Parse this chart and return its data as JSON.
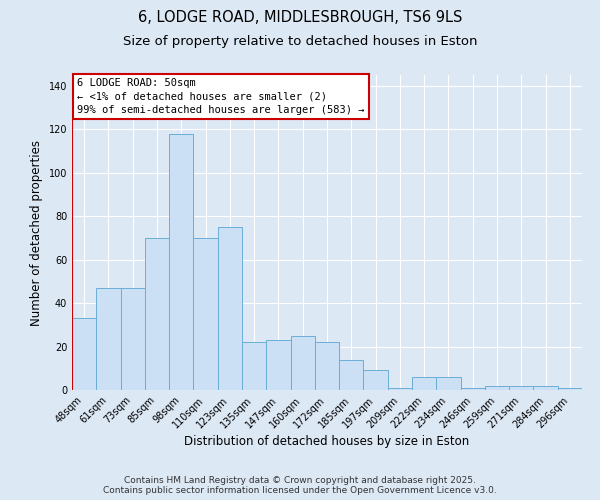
{
  "title_line1": "6, LODGE ROAD, MIDDLESBROUGH, TS6 9LS",
  "title_line2": "Size of property relative to detached houses in Eston",
  "xlabel": "Distribution of detached houses by size in Eston",
  "ylabel": "Number of detached properties",
  "bar_labels": [
    "48sqm",
    "61sqm",
    "73sqm",
    "85sqm",
    "98sqm",
    "110sqm",
    "123sqm",
    "135sqm",
    "147sqm",
    "160sqm",
    "172sqm",
    "185sqm",
    "197sqm",
    "209sqm",
    "222sqm",
    "234sqm",
    "246sqm",
    "259sqm",
    "271sqm",
    "284sqm",
    "296sqm"
  ],
  "bar_values": [
    33,
    47,
    47,
    70,
    118,
    70,
    75,
    22,
    23,
    25,
    22,
    14,
    9,
    1,
    6,
    6,
    1,
    2,
    2,
    2,
    1
  ],
  "bar_face_color": "#cce0f5",
  "bar_edge_color": "#6aaed6",
  "highlight_line_color": "#cc0000",
  "ylim": [
    0,
    145
  ],
  "yticks": [
    0,
    20,
    40,
    60,
    80,
    100,
    120,
    140
  ],
  "background_color": "#dde8f5",
  "plot_bg_color": "#dde8f5",
  "grid_color": "#ffffff",
  "annotation_text": "6 LODGE ROAD: 50sqm\n← <1% of detached houses are smaller (2)\n99% of semi-detached houses are larger (583) →",
  "annotation_box_color": "#ffffff",
  "annotation_border_color": "#cc0000",
  "footer_text": "Contains HM Land Registry data © Crown copyright and database right 2025.\nContains public sector information licensed under the Open Government Licence v3.0.",
  "title_fontsize": 10.5,
  "subtitle_fontsize": 9.5,
  "tick_fontsize": 7,
  "ylabel_fontsize": 8.5,
  "xlabel_fontsize": 8.5,
  "annotation_fontsize": 7.5,
  "footer_fontsize": 6.5
}
